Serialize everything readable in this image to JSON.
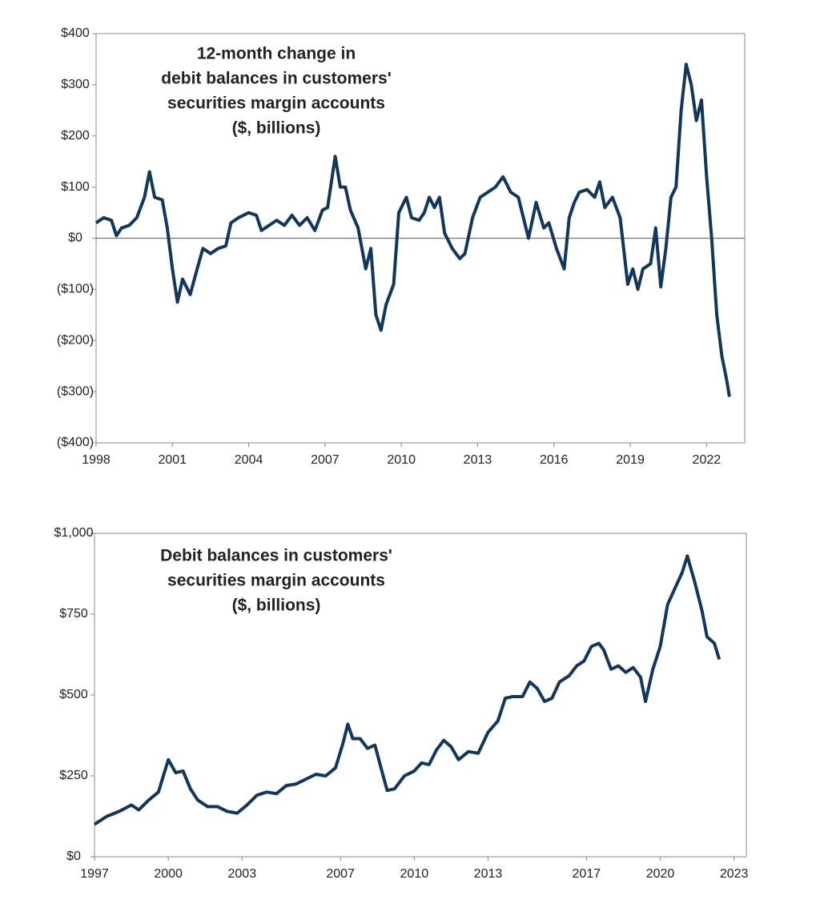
{
  "chart_data": [
    {
      "type": "line",
      "title": [
        "12-month change in",
        "debit balances in customers'",
        "securities margin accounts",
        "($, billions)"
      ],
      "color": "#12375a",
      "zero_line": true,
      "xlim": [
        1998,
        2023.5
      ],
      "xticks": [
        1998,
        2001,
        2004,
        2007,
        2010,
        2013,
        2016,
        2019,
        2022
      ],
      "ylim": [
        -400,
        400
      ],
      "yticks": [
        {
          "value": -400,
          "label": "($400)"
        },
        {
          "value": -300,
          "label": "($300)"
        },
        {
          "value": -200,
          "label": "($200)"
        },
        {
          "value": -100,
          "label": "($100)"
        },
        {
          "value": 0,
          "label": "$0"
        },
        {
          "value": 100,
          "label": "$100"
        },
        {
          "value": 200,
          "label": "$200"
        },
        {
          "value": 300,
          "label": "$300"
        },
        {
          "value": 400,
          "label": "$400"
        }
      ],
      "x": [
        1998.0,
        1998.3,
        1998.6,
        1998.8,
        1999.0,
        1999.3,
        1999.6,
        1999.9,
        2000.1,
        2000.3,
        2000.6,
        2000.8,
        2001.0,
        2001.2,
        2001.4,
        2001.7,
        2002.0,
        2002.2,
        2002.5,
        2002.8,
        2003.1,
        2003.3,
        2003.6,
        2004.0,
        2004.3,
        2004.5,
        2004.8,
        2005.1,
        2005.4,
        2005.7,
        2006.0,
        2006.3,
        2006.6,
        2006.9,
        2007.1,
        2007.4,
        2007.6,
        2007.8,
        2008.0,
        2008.3,
        2008.6,
        2008.8,
        2009.0,
        2009.2,
        2009.4,
        2009.7,
        2009.9,
        2010.2,
        2010.4,
        2010.7,
        2010.9,
        2011.1,
        2011.3,
        2011.5,
        2011.7,
        2012.0,
        2012.3,
        2012.5,
        2012.8,
        2013.1,
        2013.4,
        2013.7,
        2014.0,
        2014.3,
        2014.6,
        2014.8,
        2015.0,
        2015.3,
        2015.6,
        2015.8,
        2016.1,
        2016.4,
        2016.6,
        2016.8,
        2017.0,
        2017.3,
        2017.6,
        2017.8,
        2018.0,
        2018.3,
        2018.6,
        2018.9,
        2019.1,
        2019.3,
        2019.5,
        2019.8,
        2020.0,
        2020.2,
        2020.4,
        2020.6,
        2020.8,
        2021.0,
        2021.2,
        2021.4,
        2021.6,
        2021.8,
        2022.0,
        2022.2,
        2022.4,
        2022.6,
        2022.8,
        2022.9
      ],
      "values": [
        30,
        40,
        35,
        5,
        20,
        25,
        40,
        80,
        130,
        80,
        75,
        20,
        -60,
        -125,
        -80,
        -110,
        -55,
        -20,
        -30,
        -20,
        -15,
        30,
        40,
        50,
        45,
        15,
        25,
        35,
        25,
        45,
        25,
        40,
        15,
        55,
        60,
        160,
        100,
        100,
        55,
        20,
        -60,
        -20,
        -150,
        -180,
        -130,
        -90,
        50,
        80,
        40,
        35,
        50,
        80,
        60,
        80,
        10,
        -20,
        -40,
        -30,
        40,
        80,
        90,
        100,
        120,
        90,
        80,
        40,
        0,
        70,
        20,
        30,
        -20,
        -60,
        40,
        70,
        90,
        95,
        80,
        110,
        60,
        80,
        40,
        -90,
        -60,
        -100,
        -60,
        -50,
        20,
        -95,
        -20,
        80,
        100,
        250,
        340,
        300,
        230,
        270,
        120,
        0,
        -150,
        -230,
        -280,
        -310
      ]
    },
    {
      "type": "line",
      "title": [
        "Debit balances in customers'",
        "securities margin accounts",
        "($, billions)"
      ],
      "color": "#12375a",
      "zero_line": false,
      "xlim": [
        1997,
        2023.5
      ],
      "xticks": [
        1997,
        2000,
        2003,
        2007,
        2010,
        2013,
        2017,
        2020,
        2023
      ],
      "ylim": [
        0,
        1000
      ],
      "yticks": [
        {
          "value": 0,
          "label": "$0"
        },
        {
          "value": 250,
          "label": "$250"
        },
        {
          "value": 500,
          "label": "$500"
        },
        {
          "value": 750,
          "label": "$750"
        },
        {
          "value": 1000,
          "label": "$1,000"
        }
      ],
      "x": [
        1997.0,
        1997.5,
        1998.0,
        1998.5,
        1998.8,
        1999.2,
        1999.6,
        1999.8,
        2000.0,
        2000.3,
        2000.6,
        2000.9,
        2001.2,
        2001.6,
        2002.0,
        2002.4,
        2002.8,
        2003.2,
        2003.6,
        2004.0,
        2004.4,
        2004.8,
        2005.2,
        2005.6,
        2006.0,
        2006.4,
        2006.8,
        2007.1,
        2007.3,
        2007.5,
        2007.8,
        2008.1,
        2008.4,
        2008.7,
        2008.9,
        2009.2,
        2009.6,
        2010.0,
        2010.3,
        2010.6,
        2010.9,
        2011.2,
        2011.5,
        2011.8,
        2012.2,
        2012.6,
        2013.0,
        2013.4,
        2013.7,
        2014.0,
        2014.4,
        2014.7,
        2015.0,
        2015.3,
        2015.6,
        2015.9,
        2016.3,
        2016.6,
        2016.9,
        2017.2,
        2017.5,
        2017.7,
        2018.0,
        2018.3,
        2018.6,
        2018.9,
        2019.2,
        2019.4,
        2019.7,
        2020.0,
        2020.3,
        2020.6,
        2020.9,
        2021.1,
        2021.4,
        2021.7,
        2021.9,
        2022.2,
        2022.4
      ],
      "values": [
        100,
        125,
        140,
        160,
        145,
        175,
        200,
        250,
        300,
        260,
        265,
        210,
        175,
        155,
        155,
        140,
        135,
        160,
        190,
        200,
        195,
        220,
        225,
        240,
        255,
        250,
        275,
        350,
        410,
        365,
        365,
        335,
        345,
        260,
        205,
        210,
        250,
        265,
        290,
        285,
        330,
        360,
        340,
        300,
        325,
        320,
        385,
        420,
        490,
        495,
        495,
        540,
        520,
        480,
        490,
        540,
        560,
        590,
        605,
        650,
        660,
        640,
        580,
        590,
        570,
        585,
        555,
        480,
        580,
        650,
        780,
        830,
        880,
        930,
        850,
        760,
        680,
        660,
        610
      ]
    }
  ]
}
